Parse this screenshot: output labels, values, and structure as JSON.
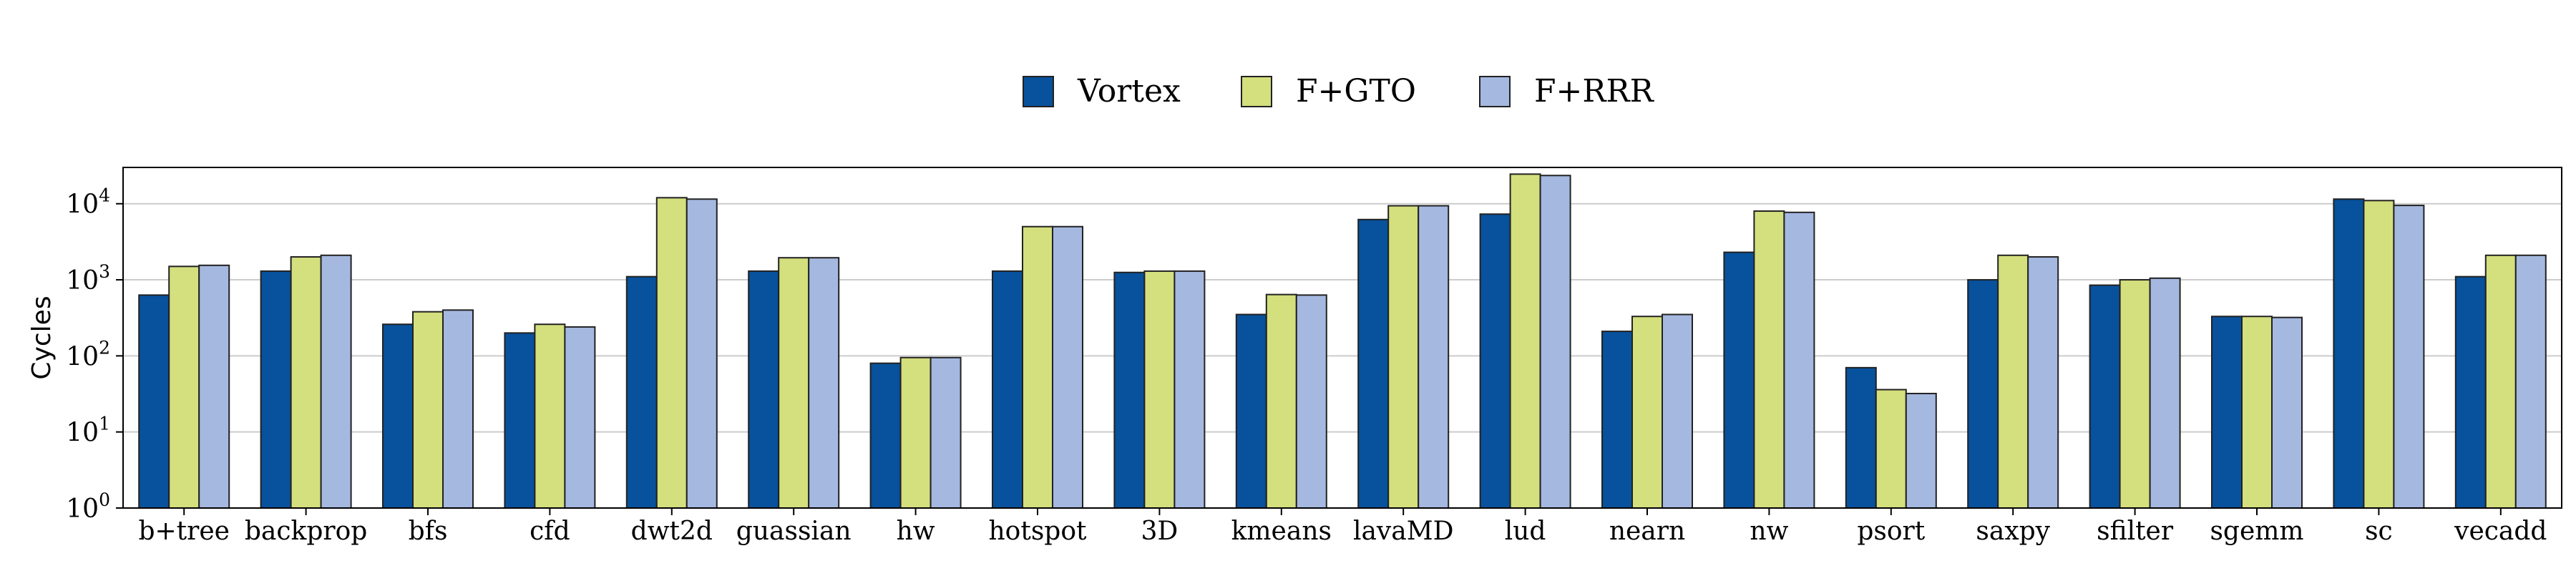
{
  "chart_data": {
    "type": "bar",
    "title": "",
    "xlabel": "",
    "ylabel": "Cycles",
    "yscale": "log",
    "ylim": [
      1,
      30000
    ],
    "yticks": [
      {
        "value": 1,
        "base": "10",
        "exp": "0"
      },
      {
        "value": 10,
        "base": "10",
        "exp": "1"
      },
      {
        "value": 100,
        "base": "10",
        "exp": "2"
      },
      {
        "value": 1000,
        "base": "10",
        "exp": "3"
      },
      {
        "value": 10000,
        "base": "10",
        "exp": "4"
      }
    ],
    "grid": true,
    "legend_position": "top-center",
    "categories": [
      "b+tree",
      "backprop",
      "bfs",
      "cfd",
      "dwt2d",
      "guassian",
      "hw",
      "hotspot",
      "3D",
      "kmeans",
      "lavaMD",
      "lud",
      "nearn",
      "nw",
      "psort",
      "saxpy",
      "sfilter",
      "sgemm",
      "sc",
      "vecadd"
    ],
    "series": [
      {
        "name": "Vortex",
        "color": "#08519c",
        "values": [
          630,
          1300,
          260,
          200,
          1100,
          1300,
          80,
          1300,
          1250,
          350,
          6200,
          7300,
          210,
          2300,
          70,
          1000,
          850,
          330,
          11500,
          1100
        ]
      },
      {
        "name": "F+GTO",
        "color": "#d4df7e",
        "values": [
          1500,
          2000,
          380,
          260,
          12000,
          1950,
          95,
          5000,
          1300,
          640,
          9400,
          24500,
          330,
          8000,
          36,
          2100,
          1000,
          330,
          11000,
          2100
        ]
      },
      {
        "name": "F+RRR",
        "color": "#a5b8e0",
        "values": [
          1550,
          2100,
          400,
          240,
          11500,
          1950,
          95,
          5000,
          1300,
          630,
          9400,
          23500,
          350,
          7700,
          32,
          2000,
          1050,
          320,
          9500,
          2100
        ]
      }
    ]
  }
}
